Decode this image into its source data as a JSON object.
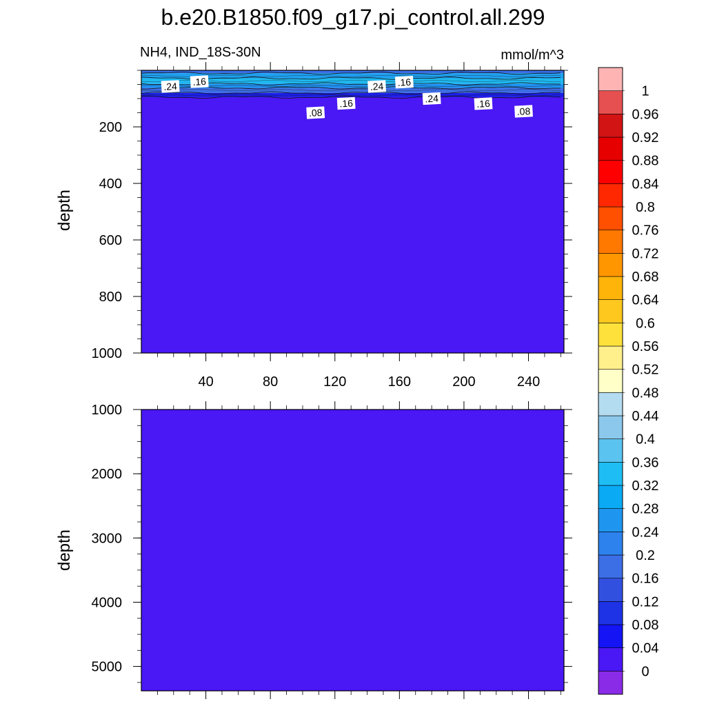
{
  "title": "b.e20.B1850.f09_g17.pi_control.all.299",
  "subtitle_left": "NH4, IND_18S-30N",
  "subtitle_right": "mmol/m^3",
  "chart_data": [
    {
      "type": "heatmap",
      "panel": "upper",
      "ylabel": "depth",
      "ylim": [
        1000,
        0
      ],
      "yticks": [
        "200",
        "400",
        "600",
        "800",
        "1000"
      ],
      "xlim": [
        0,
        262
      ],
      "xticks": [
        "40",
        "80",
        "120",
        "160",
        "200",
        "240"
      ],
      "bands": [
        {
          "from": 0,
          "to": 10,
          "fill": "#3a6ee6"
        },
        {
          "from": 10,
          "to": 28,
          "fill": "#1ea0f0"
        },
        {
          "from": 28,
          "to": 48,
          "fill": "#1eb8f0"
        },
        {
          "from": 48,
          "to": 62,
          "fill": "#1e90f0"
        },
        {
          "from": 62,
          "to": 80,
          "fill": "#3c6ee6"
        },
        {
          "from": 80,
          "to": 95,
          "fill": "#1a1ee8"
        },
        {
          "from": 95,
          "to": 1000,
          "fill": "#4a17f5"
        }
      ],
      "contour_labels": [
        {
          "text": ".24",
          "x": 18,
          "depth": 57
        },
        {
          "text": ".16",
          "x": 36,
          "depth": 40
        },
        {
          "text": ".24",
          "x": 146,
          "depth": 57
        },
        {
          "text": ".16",
          "x": 163,
          "depth": 42
        },
        {
          "text": ".24",
          "x": 180,
          "depth": 100
        },
        {
          "text": ".16",
          "x": 127,
          "depth": 117
        },
        {
          "text": ".08",
          "x": 108,
          "depth": 150
        },
        {
          "text": ".16",
          "x": 212,
          "depth": 118
        },
        {
          "text": ".08",
          "x": 237,
          "depth": 145
        }
      ]
    },
    {
      "type": "heatmap",
      "panel": "lower",
      "ylabel": "depth",
      "ylim": [
        5380,
        1000
      ],
      "yticks": [
        "1000",
        "2000",
        "3000",
        "4000",
        "5000"
      ],
      "xlim": [
        0,
        262
      ],
      "bands": [
        {
          "from": 1000,
          "to": 5380,
          "fill": "#4a17f5"
        }
      ]
    }
  ],
  "colorbar": {
    "labels": [
      "0",
      "0.04",
      "0.08",
      "0.12",
      "0.16",
      "0.2",
      "0.24",
      "0.28",
      "0.32",
      "0.36",
      "0.4",
      "0.44",
      "0.48",
      "0.52",
      "0.56",
      "0.6",
      "0.64",
      "0.68",
      "0.72",
      "0.76",
      "0.8",
      "0.84",
      "0.88",
      "0.92",
      "0.96",
      "1"
    ],
    "colors": [
      "#8a2be8",
      "#4a17f5",
      "#1414f5",
      "#1e32e6",
      "#3250e0",
      "#3c6ee6",
      "#2d82ee",
      "#1e96f0",
      "#0aaaf5",
      "#1ebef5",
      "#5ac3f0",
      "#8cc8eb",
      "#b4dcf0",
      "#ffffc8",
      "#fff08c",
      "#ffe13c",
      "#ffc81e",
      "#ffb40a",
      "#ff9600",
      "#ff7800",
      "#ff5000",
      "#ff2800",
      "#ff0000",
      "#e60000",
      "#d21414",
      "#e65050",
      "#ffb4b4"
    ]
  }
}
